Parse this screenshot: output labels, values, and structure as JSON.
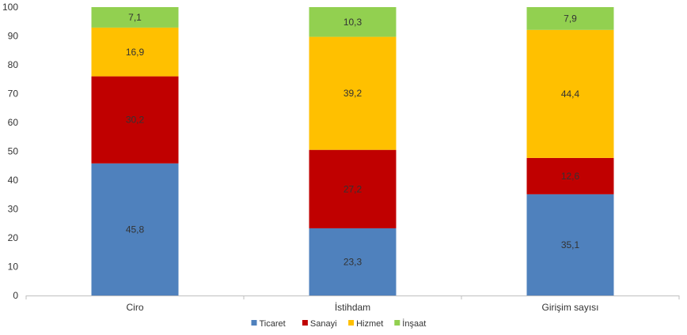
{
  "chart_data": {
    "type": "bar",
    "stacked": true,
    "categories": [
      "Ciro",
      "İstihdam",
      "Girişim sayısı"
    ],
    "series": [
      {
        "name": "Ticaret",
        "values": [
          45.8,
          23.3,
          35.1
        ],
        "labels": [
          "45,8",
          "23,3",
          "35,1"
        ],
        "color": "#4f81bd"
      },
      {
        "name": "Sanayi",
        "values": [
          30.2,
          27.2,
          12.6
        ],
        "labels": [
          "30,2",
          "27,2",
          "12,6"
        ],
        "color": "#c00000"
      },
      {
        "name": "Hizmet",
        "values": [
          16.9,
          39.2,
          44.4
        ],
        "labels": [
          "16,9",
          "39,2",
          "44,4"
        ],
        "color": "#ffc000"
      },
      {
        "name": "İnşaat",
        "values": [
          7.1,
          10.3,
          7.9
        ],
        "labels": [
          "7,1",
          "10,3",
          "7,9"
        ],
        "color": "#92d050"
      }
    ],
    "ylim": [
      0,
      100
    ],
    "yticks": [
      0,
      10,
      20,
      30,
      40,
      50,
      60,
      70,
      80,
      90,
      100
    ],
    "ytick_labels": [
      "0",
      "10",
      "20",
      "30",
      "40",
      "50",
      "60",
      "70",
      "80",
      "90",
      "100"
    ],
    "grid": false,
    "legend_position": "bottom"
  }
}
